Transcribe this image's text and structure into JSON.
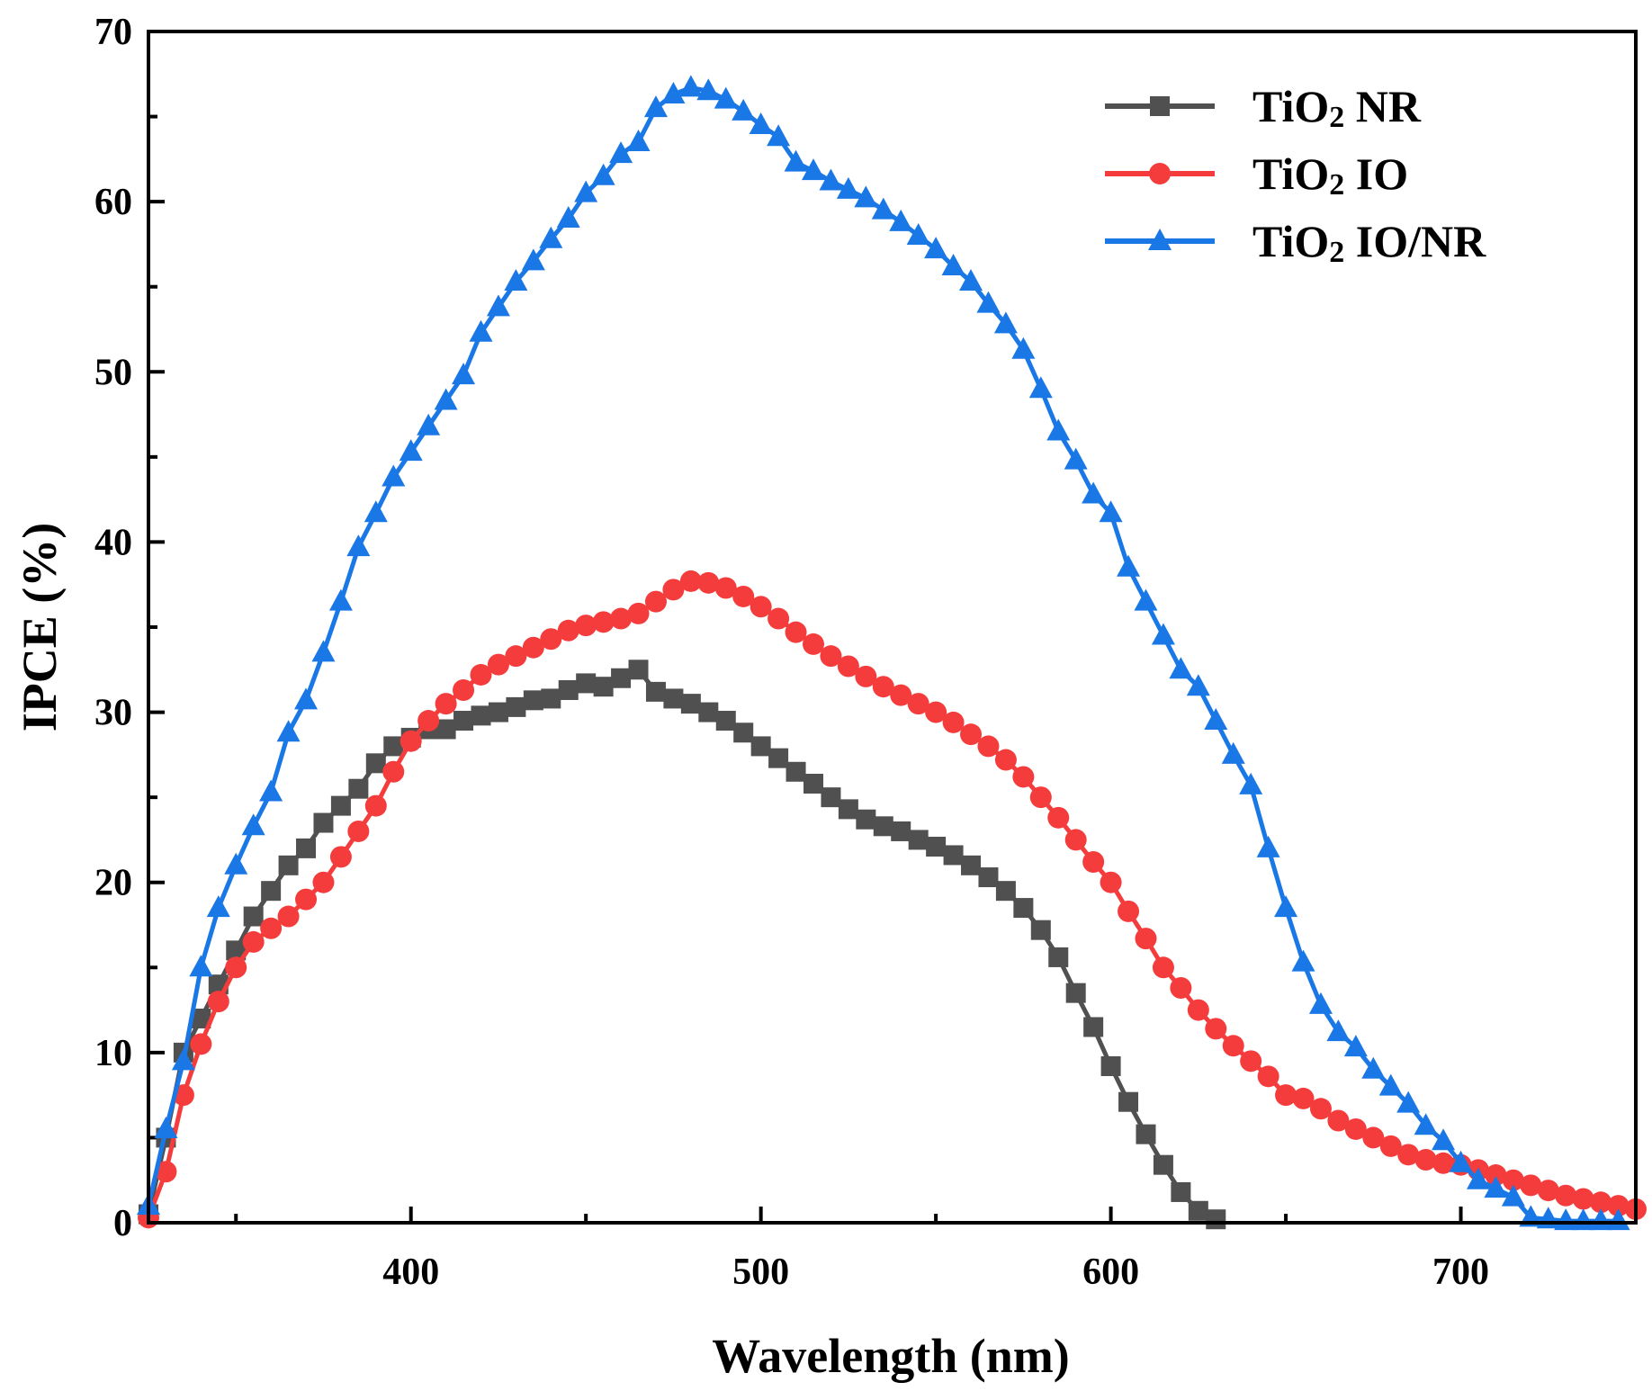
{
  "chart_data": {
    "type": "line",
    "title": "",
    "xlabel": "Wavelength (nm)",
    "ylabel": "IPCE (%)",
    "xlim": [
      325,
      750
    ],
    "ylim": [
      0,
      70
    ],
    "xticks": [
      400,
      500,
      600,
      700
    ],
    "yticks": [
      0,
      10,
      20,
      30,
      40,
      50,
      60,
      70
    ],
    "grid": false,
    "legend_placement": "top-right",
    "series": [
      {
        "name": "TiO2 NR",
        "legend_main": "TiO",
        "legend_sub": "2",
        "legend_rest": " NR",
        "color": "#505050",
        "marker": "square",
        "x": [
          325,
          330,
          335,
          340,
          345,
          350,
          355,
          360,
          365,
          370,
          375,
          380,
          385,
          390,
          395,
          400,
          405,
          410,
          415,
          420,
          425,
          430,
          435,
          440,
          445,
          450,
          455,
          460,
          465,
          470,
          475,
          480,
          485,
          490,
          495,
          500,
          505,
          510,
          515,
          520,
          525,
          530,
          535,
          540,
          545,
          550,
          555,
          560,
          565,
          570,
          575,
          580,
          585,
          590,
          595,
          600,
          605,
          610,
          615,
          620,
          625,
          630
        ],
        "y": [
          0.5,
          5,
          10,
          12,
          14,
          16,
          18,
          19.5,
          21,
          22,
          23.5,
          24.5,
          25.5,
          27,
          28,
          28.5,
          29,
          29,
          29.5,
          29.8,
          30,
          30.3,
          30.7,
          30.8,
          31.3,
          31.7,
          31.5,
          32,
          32.5,
          31.2,
          30.8,
          30.5,
          30,
          29.5,
          28.8,
          28,
          27.3,
          26.5,
          25.8,
          25,
          24.3,
          23.7,
          23.3,
          23,
          22.5,
          22.1,
          21.6,
          21,
          20.3,
          19.5,
          18.5,
          17.2,
          15.6,
          13.5,
          11.5,
          9.2,
          7.1,
          5.2,
          3.4,
          1.8,
          0.7,
          0.2
        ]
      },
      {
        "name": "TiO2 IO",
        "legend_main": "TiO",
        "legend_sub": "2",
        "legend_rest": " IO",
        "color": "#f53c3c",
        "marker": "circle",
        "x": [
          325,
          330,
          335,
          340,
          345,
          350,
          355,
          360,
          365,
          370,
          375,
          380,
          385,
          390,
          395,
          400,
          405,
          410,
          415,
          420,
          425,
          430,
          435,
          440,
          445,
          450,
          455,
          460,
          465,
          470,
          475,
          480,
          485,
          490,
          495,
          500,
          505,
          510,
          515,
          520,
          525,
          530,
          535,
          540,
          545,
          550,
          555,
          560,
          565,
          570,
          575,
          580,
          585,
          590,
          595,
          600,
          605,
          610,
          615,
          620,
          625,
          630,
          635,
          640,
          645,
          650,
          655,
          660,
          665,
          670,
          675,
          680,
          685,
          690,
          695,
          700,
          705,
          710,
          715,
          720,
          725,
          730,
          735,
          740,
          745,
          750
        ],
        "y": [
          0.3,
          3,
          7.5,
          10.5,
          13,
          15,
          16.5,
          17.3,
          18,
          19,
          20,
          21.5,
          23,
          24.5,
          26.5,
          28.3,
          29.5,
          30.5,
          31.3,
          32.2,
          32.8,
          33.3,
          33.8,
          34.3,
          34.8,
          35.1,
          35.3,
          35.5,
          35.8,
          36.5,
          37.2,
          37.7,
          37.6,
          37.3,
          36.8,
          36.2,
          35.5,
          34.7,
          34,
          33.3,
          32.7,
          32.1,
          31.5,
          31,
          30.5,
          30,
          29.4,
          28.7,
          28,
          27.2,
          26.2,
          25,
          23.8,
          22.5,
          21.2,
          20,
          18.3,
          16.7,
          15,
          13.8,
          12.5,
          11.4,
          10.4,
          9.5,
          8.6,
          7.5,
          7.3,
          6.7,
          6,
          5.5,
          5,
          4.5,
          4,
          3.7,
          3.5,
          3.4,
          3.1,
          2.8,
          2.5,
          2.2,
          1.9,
          1.6,
          1.4,
          1.2,
          1,
          0.8
        ]
      },
      {
        "name": "TiO2 IO/NR",
        "legend_main": "TiO",
        "legend_sub": "2",
        "legend_rest": " IO/NR",
        "color": "#1a78e6",
        "marker": "triangle",
        "x": [
          325,
          330,
          335,
          340,
          345,
          350,
          355,
          360,
          365,
          370,
          375,
          380,
          385,
          390,
          395,
          400,
          405,
          410,
          415,
          420,
          425,
          430,
          435,
          440,
          445,
          450,
          455,
          460,
          465,
          470,
          475,
          480,
          485,
          490,
          495,
          500,
          505,
          510,
          515,
          520,
          525,
          530,
          535,
          540,
          545,
          550,
          555,
          560,
          565,
          570,
          575,
          580,
          585,
          590,
          595,
          600,
          605,
          610,
          615,
          620,
          625,
          630,
          635,
          640,
          645,
          650,
          655,
          660,
          665,
          670,
          675,
          680,
          685,
          690,
          695,
          700,
          705,
          710,
          715,
          720,
          725,
          730,
          735,
          740,
          745
        ],
        "y": [
          1,
          5.5,
          9.5,
          15,
          18.5,
          21,
          23.3,
          25.3,
          28.8,
          30.7,
          33.5,
          36.5,
          39.7,
          41.7,
          43.8,
          45.3,
          46.8,
          48.3,
          49.8,
          52.3,
          53.8,
          55.3,
          56.5,
          57.8,
          59,
          60.5,
          61.5,
          62.8,
          63.5,
          65.5,
          66.3,
          66.7,
          66.5,
          66,
          65.3,
          64.5,
          63.8,
          62.3,
          61.8,
          61.2,
          60.7,
          60.2,
          59.5,
          58.8,
          58,
          57.2,
          56.2,
          55.3,
          54,
          52.8,
          51.3,
          49,
          46.5,
          44.8,
          42.8,
          41.7,
          38.5,
          36.5,
          34.5,
          32.5,
          31.5,
          29.5,
          27.5,
          25.7,
          22,
          18.5,
          15.3,
          12.8,
          11.2,
          10.3,
          9,
          8,
          7,
          5.7,
          4.8,
          3.5,
          2.5,
          2,
          1.5,
          0.3,
          0.2,
          0.1,
          0.1,
          0.1,
          0.1
        ]
      }
    ]
  }
}
